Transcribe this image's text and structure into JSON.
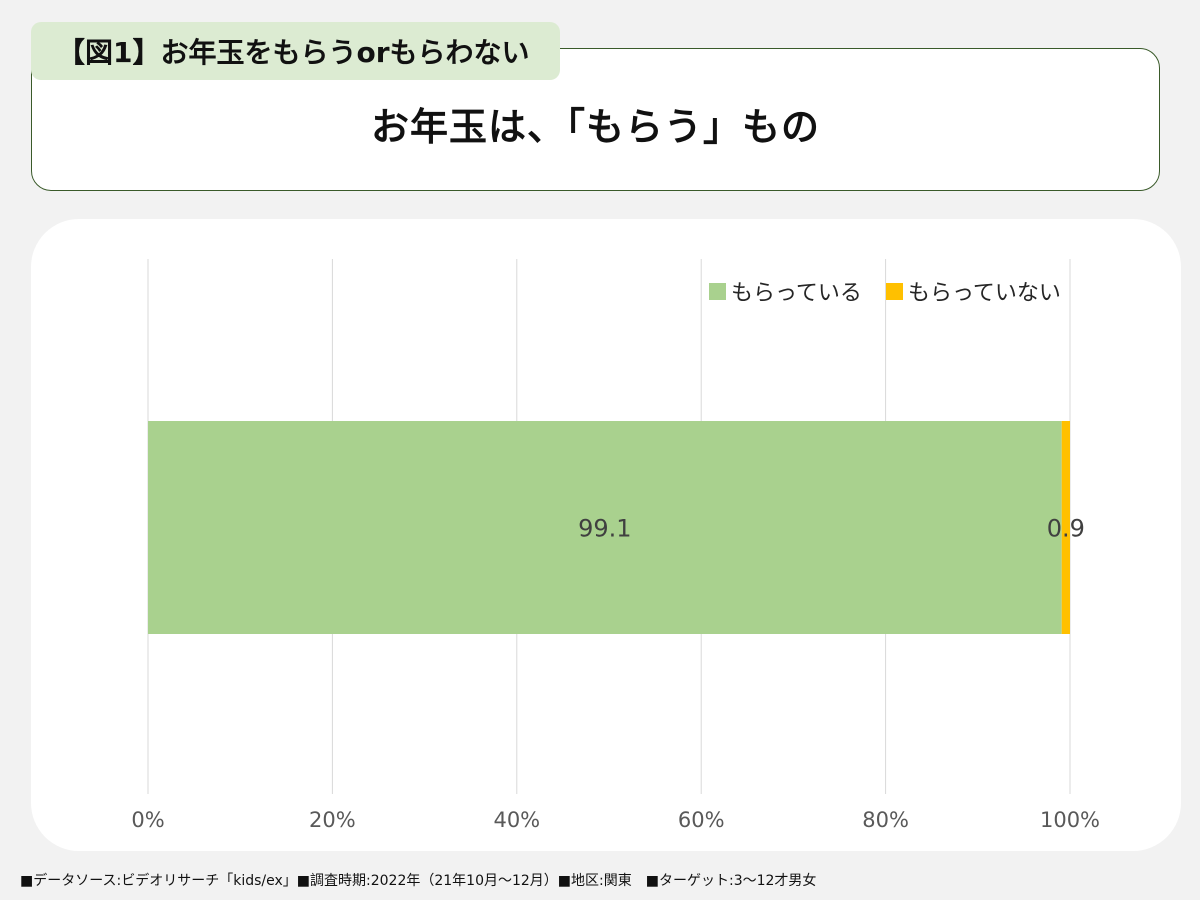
{
  "header": {
    "figure_label": "【図1】お年玉をもらうorもらわない",
    "headline": "お年玉は、「もらう」もの"
  },
  "chart_data": {
    "type": "bar",
    "orientation": "horizontal",
    "stacked": "percent",
    "categories": [
      ""
    ],
    "series": [
      {
        "name": "もらっている",
        "values": [
          99.1
        ],
        "color": "#a9d18e"
      },
      {
        "name": "もらっていない",
        "values": [
          0.9
        ],
        "color": "#ffc000"
      }
    ],
    "data_labels": [
      "99.1",
      "0.9"
    ],
    "xlim": [
      0,
      100
    ],
    "xticks": [
      "0%",
      "20%",
      "40%",
      "60%",
      "80%",
      "100%"
    ],
    "grid": true,
    "legend_position": "top-right"
  },
  "footer": {
    "note": "■データソース:ビデオリサーチ「kids/ex」■調査時期:2022年（21年10月～12月）■地区:関東　■ターゲット:3～12才男女"
  }
}
